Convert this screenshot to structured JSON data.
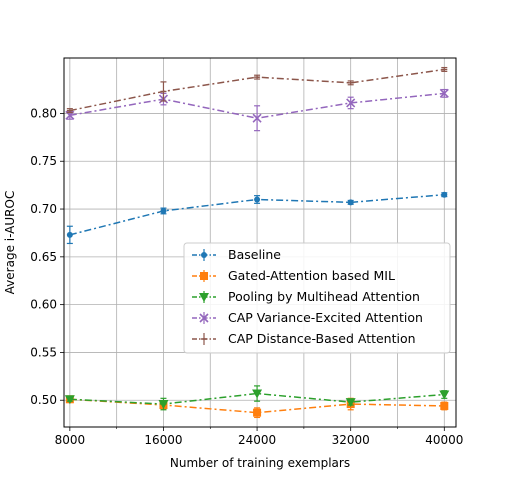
{
  "chart_data": {
    "type": "line",
    "title": "",
    "xlabel": "Number of training exemplars",
    "ylabel": "Average i-AUROC",
    "x": [
      8000,
      16000,
      24000,
      32000,
      40000
    ],
    "x_ticks": [
      8000,
      16000,
      24000,
      32000,
      40000
    ],
    "x_tick_labels": [
      "8000",
      "16000",
      "24000",
      "32000",
      "40000"
    ],
    "x_minor_ticks": [
      12000,
      20000,
      28000,
      36000
    ],
    "xlim": [
      7500,
      41000
    ],
    "y_ticks": [
      0.5,
      0.55,
      0.6,
      0.65,
      0.7,
      0.75,
      0.8
    ],
    "y_tick_labels": [
      "0.50",
      "0.55",
      "0.60",
      "0.65",
      "0.70",
      "0.75",
      "0.80"
    ],
    "ylim": [
      0.472,
      0.858
    ],
    "grid": true,
    "legend_position": "center-right",
    "series": [
      {
        "name": "Baseline",
        "color": "#1f77b4",
        "marker": "dot",
        "values": [
          0.673,
          0.698,
          0.71,
          0.707,
          0.715
        ],
        "errors": [
          0.009,
          0.003,
          0.004,
          0.002,
          0.002
        ]
      },
      {
        "name": "Gated-Attention based MIL",
        "color": "#ff7f0e",
        "marker": "square",
        "values": [
          0.501,
          0.495,
          0.487,
          0.496,
          0.494
        ],
        "errors": [
          0.003,
          0.004,
          0.005,
          0.006,
          0.004
        ]
      },
      {
        "name": "Pooling by Multihead Attention",
        "color": "#2ca02c",
        "marker": "triangle-down",
        "values": [
          0.501,
          0.496,
          0.507,
          0.498,
          0.506
        ],
        "errors": [
          0.002,
          0.006,
          0.008,
          0.003,
          0.004
        ]
      },
      {
        "name": "CAP Variance-Excited Attention",
        "color": "#9467bd",
        "marker": "x",
        "values": [
          0.798,
          0.815,
          0.795,
          0.811,
          0.821
        ],
        "errors": [
          0.004,
          0.006,
          0.013,
          0.006,
          0.004
        ]
      },
      {
        "name": "CAP Distance-Based Attention",
        "color": "#8c564b",
        "marker": "cap",
        "values": [
          0.803,
          0.823,
          0.838,
          0.832,
          0.846
        ],
        "errors": [
          0.002,
          0.01,
          0.002,
          0.002,
          0.002
        ]
      }
    ]
  }
}
